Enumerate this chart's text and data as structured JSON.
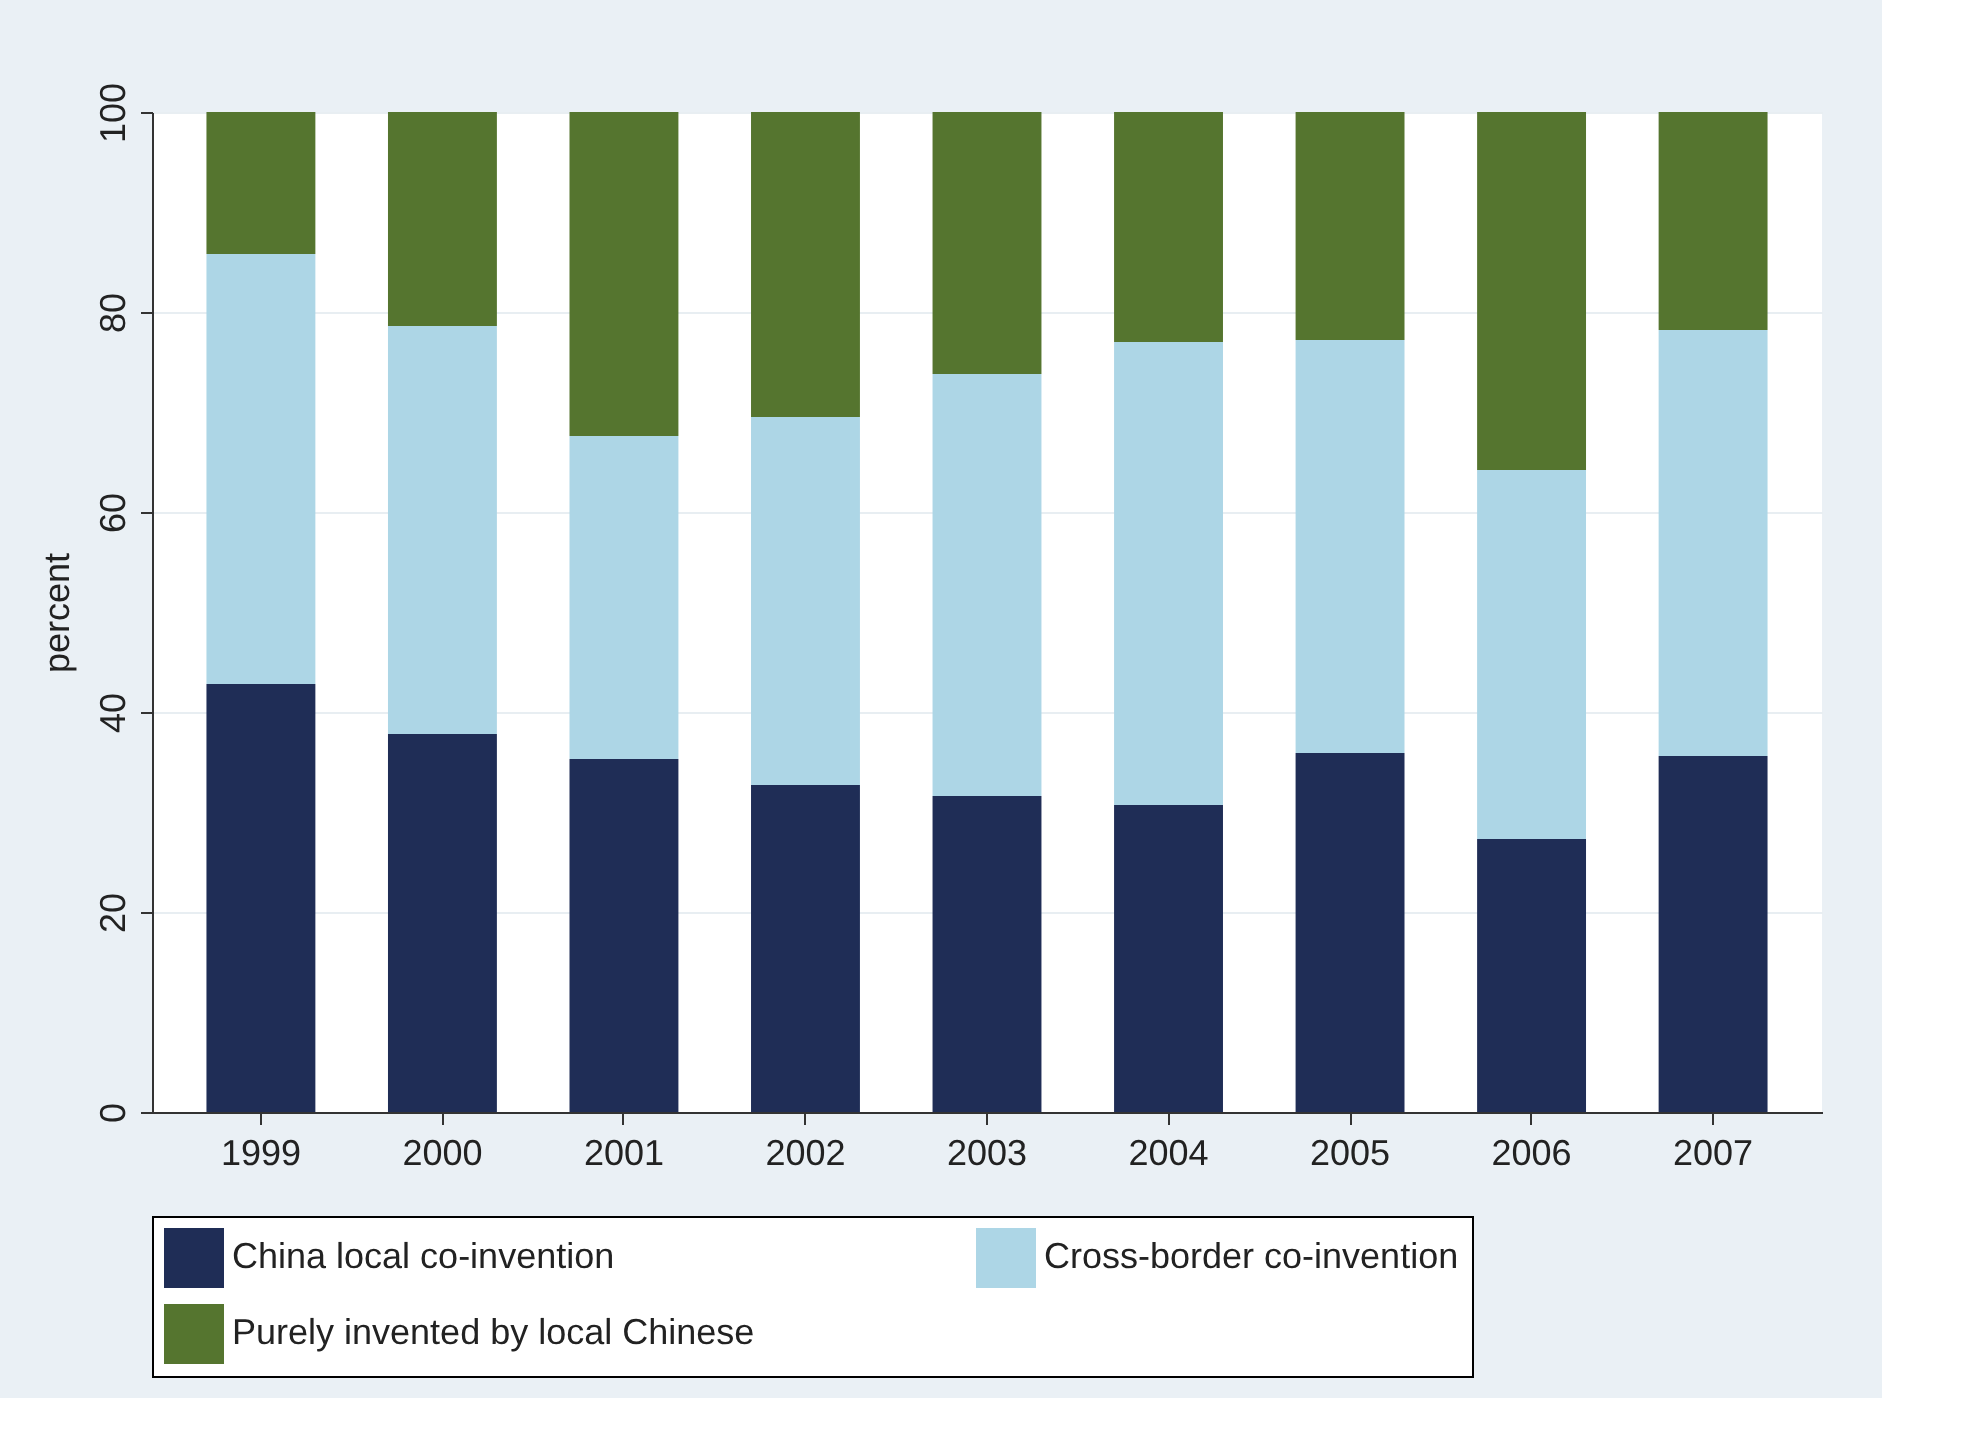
{
  "chart_data": {
    "type": "bar",
    "stacked": true,
    "ylabel": "percent",
    "categories": [
      "1999",
      "2000",
      "2001",
      "2002",
      "2003",
      "2004",
      "2005",
      "2006",
      "2007"
    ],
    "series": [
      {
        "name": "China local co-invention",
        "color": "#1f2d56",
        "values": [
          42.8,
          37.8,
          35.3,
          32.7,
          31.6,
          30.7,
          35.9,
          27.3,
          35.6
        ]
      },
      {
        "name": "Cross-border co-invention",
        "color": "#add6e6",
        "values": [
          43.0,
          40.8,
          32.3,
          36.8,
          42.2,
          46.3,
          41.3,
          36.9,
          42.6
        ]
      },
      {
        "name": "Purely invented by local Chinese",
        "color": "#55752f",
        "values": [
          14.2,
          21.4,
          32.4,
          30.5,
          26.2,
          23.0,
          22.8,
          35.8,
          21.8
        ]
      }
    ],
    "ylim": [
      0,
      100
    ],
    "yticks": [
      0,
      20,
      40,
      60,
      80,
      100
    ],
    "grid": "y",
    "legend": "bottom"
  }
}
